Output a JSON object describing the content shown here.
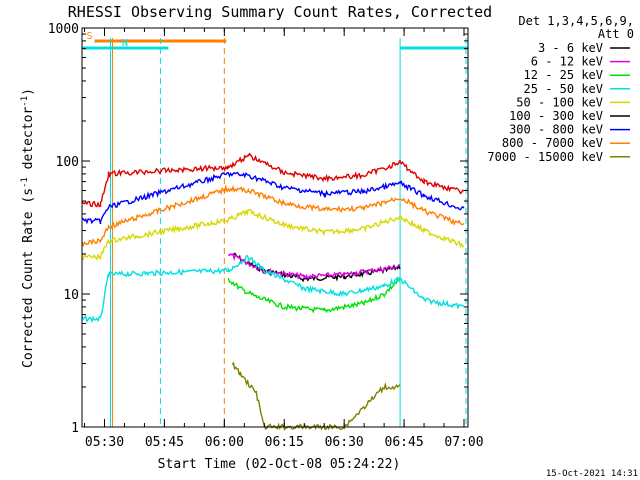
{
  "chart_data": {
    "type": "line",
    "title": "RHESSI Observing Summary Count Rates, Corrected",
    "xlabel": "Start Time (02-Oct-08 05:24:22)",
    "ylabel_main": "Corrected Count Rate (s",
    "ylabel_sup1": "-1",
    "ylabel_mid": " detector",
    "ylabel_sup2": "-1",
    "ylabel_end": ")",
    "yscale": "log",
    "xlim": [
      "05:24:22",
      "07:01:00"
    ],
    "ylim": [
      1,
      1000
    ],
    "ytick_labels": [
      "1",
      "10",
      "100",
      "1000"
    ],
    "xtick_labels": [
      "05:30",
      "05:45",
      "06:00",
      "06:15",
      "06:30",
      "06:45",
      "07:00"
    ],
    "legend_header_1": "Det 1,3,4,5,6,9,",
    "legend_header_2": "Att 0",
    "timestamp": "15-Oct-2021 14:31",
    "flags": [
      {
        "label": "S",
        "color": "#ff7f00",
        "start": "05:27:30",
        "end": "06:00:30"
      },
      {
        "label": "N",
        "color": "#00e0e0",
        "start": "05:24:22",
        "end": "05:46:00"
      },
      {
        "label": "",
        "color": "#00e0e0",
        "start": "06:44:00",
        "end": "07:01:00"
      }
    ],
    "boundary_lines": [
      {
        "color": "#ff7f00",
        "style": "solid",
        "t": "05:32:00"
      },
      {
        "color": "#ff7f00",
        "style": "dashed",
        "t": "06:00:00"
      },
      {
        "color": "#00e0e0",
        "style": "solid",
        "t": "05:31:30"
      },
      {
        "color": "#00e0e0",
        "style": "dashed",
        "t": "05:44:00"
      },
      {
        "color": "#00e0e0",
        "style": "solid",
        "t": "06:44:00"
      },
      {
        "color": "#00e0e0",
        "style": "dashed",
        "t": "07:00:30"
      }
    ],
    "series": [
      {
        "name": "3 - 6 keV",
        "color": "#000000",
        "x": [
          "05:25",
          "05:28",
          "05:31",
          "06:02",
          "06:06",
          "06:10",
          "06:20",
          "06:30",
          "06:40",
          "06:44",
          "06:46"
        ],
        "values": [
          null,
          null,
          null,
          20,
          17,
          15,
          13,
          13.5,
          15,
          16,
          null
        ]
      },
      {
        "name": "6 - 12 keV",
        "color": "#e000e0",
        "x": [
          "06:01",
          "06:06",
          "06:10",
          "06:20",
          "06:30",
          "06:40",
          "06:44",
          "06:46"
        ],
        "values": [
          20,
          17,
          15,
          13.5,
          14,
          15.5,
          16,
          null
        ]
      },
      {
        "name": "12 - 25 keV",
        "color": "#00e000",
        "x": [
          "05:24:22",
          "05:29",
          "05:31",
          "06:01",
          "06:04",
          "06:08",
          "06:15",
          "06:25",
          "06:35",
          "06:40",
          "06:44",
          "06:46"
        ],
        "values": [
          null,
          null,
          null,
          13,
          11,
          9.5,
          8,
          7.5,
          8.5,
          10,
          13,
          null
        ]
      },
      {
        "name": "25 - 50 keV",
        "color": "#00e0e0",
        "x": [
          "05:24:22",
          "05:29",
          "05:31",
          "06:01",
          "06:06",
          "06:10",
          "06:20",
          "06:30",
          "06:40",
          "06:44",
          "06:50",
          "07:00"
        ],
        "values": [
          6.5,
          6.5,
          14,
          15,
          19,
          15,
          11,
          10,
          11.5,
          13,
          9,
          8
        ]
      },
      {
        "name": "50 - 100 keV",
        "color": "#d8d800",
        "x": [
          "05:24:22",
          "05:29",
          "05:31",
          "06:01",
          "06:06",
          "06:15",
          "06:25",
          "06:35",
          "06:44",
          "06:50",
          "07:00"
        ],
        "values": [
          19,
          19,
          25,
          36,
          42,
          33,
          29,
          31,
          38,
          30,
          23
        ]
      },
      {
        "name": "100 - 300 keV",
        "color": "#000000",
        "x": [],
        "values": []
      },
      {
        "name": "300 - 800 keV",
        "color": "#0000ff",
        "x": [
          "05:24:22",
          "05:29",
          "05:31",
          "06:01",
          "06:06",
          "06:15",
          "06:25",
          "06:35",
          "06:44",
          "06:50",
          "07:00"
        ],
        "values": [
          36,
          35,
          45,
          80,
          78,
          63,
          57,
          59,
          68,
          55,
          43
        ]
      },
      {
        "name": "800 - 7000 keV",
        "color": "#ff7f00",
        "x": [
          "05:24:22",
          "05:29",
          "05:31",
          "06:01",
          "06:06",
          "06:15",
          "06:25",
          "06:35",
          "06:44",
          "06:50",
          "07:00"
        ],
        "values": [
          24,
          25,
          32,
          62,
          60,
          48,
          43,
          44,
          53,
          42,
          33
        ]
      },
      {
        "name": "7000 - 15000 keV",
        "color": "#808000",
        "x": [
          "06:00",
          "06:02",
          "06:04",
          "06:08",
          "06:10",
          "06:30",
          "06:40",
          "06:44"
        ],
        "values": [
          null,
          3,
          2.5,
          1.8,
          1,
          1,
          2,
          2
        ]
      },
      {
        "name": "",
        "color": "#e00000",
        "x": [
          "05:24:22",
          "05:29",
          "05:31",
          "06:01",
          "06:06",
          "06:15",
          "06:25",
          "06:35",
          "06:44",
          "06:50",
          "07:00"
        ],
        "values": [
          48,
          47,
          80,
          90,
          110,
          82,
          74,
          78,
          98,
          70,
          58
        ]
      }
    ]
  }
}
